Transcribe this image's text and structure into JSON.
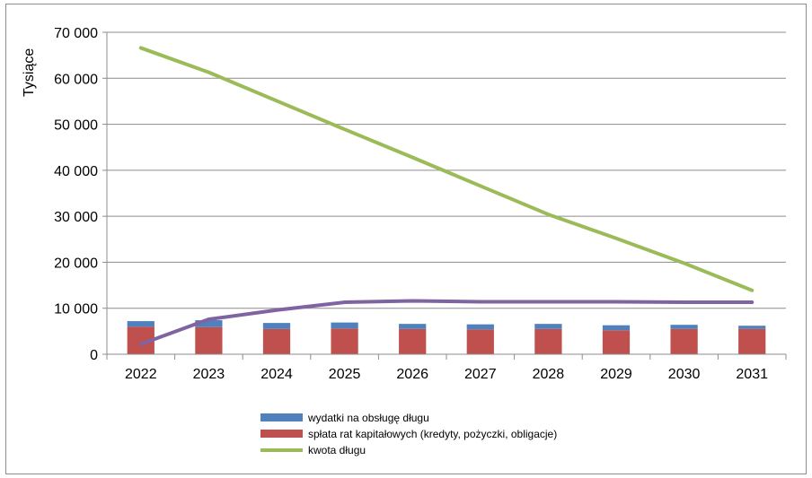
{
  "chart_data": {
    "type": "bar",
    "ylabel": "Tysiące",
    "ylim": [
      0,
      70000
    ],
    "yticks": [
      0,
      10000,
      20000,
      30000,
      40000,
      50000,
      60000,
      70000
    ],
    "ytick_labels": [
      "0",
      "10 000",
      "20 000",
      "30 000",
      "40 000",
      "50 000",
      "60 000",
      "70 000"
    ],
    "categories": [
      "2022",
      "2023",
      "2024",
      "2025",
      "2026",
      "2027",
      "2028",
      "2029",
      "2030",
      "2031"
    ],
    "grid": true,
    "legend_position": "bottom",
    "series": [
      {
        "name": "spłata rat kapitałowych (kredyty, pożyczki, obligacje)",
        "type": "bar",
        "color": "#c0504d",
        "values": [
          6000,
          5900,
          5500,
          5600,
          5500,
          5400,
          5500,
          5200,
          5500,
          5500
        ]
      },
      {
        "name": "wydatki na obsługę długu",
        "type": "bar",
        "color": "#4f81bd",
        "values": [
          1200,
          1500,
          1300,
          1300,
          1100,
          1100,
          1100,
          1100,
          900,
          700
        ]
      },
      {
        "name": "kwota długu",
        "type": "line",
        "color": "#9bbb59",
        "values": [
          66600,
          61300,
          55100,
          48900,
          42800,
          36600,
          30400,
          25200,
          19800,
          13900
        ]
      },
      {
        "name": "",
        "type": "line",
        "color": "#8064a2",
        "values": [
          2200,
          7600,
          9600,
          11300,
          11600,
          11400,
          11400,
          11400,
          11300,
          11300
        ]
      }
    ],
    "legend": [
      {
        "label": "wydatki na obsługę długu",
        "series_index": 1,
        "kind": "bar"
      },
      {
        "label": "spłata rat kapitałowych (kredyty, pożyczki, obligacje)",
        "series_index": 0,
        "kind": "bar"
      },
      {
        "label": "kwota długu",
        "series_index": 2,
        "kind": "line"
      }
    ]
  }
}
